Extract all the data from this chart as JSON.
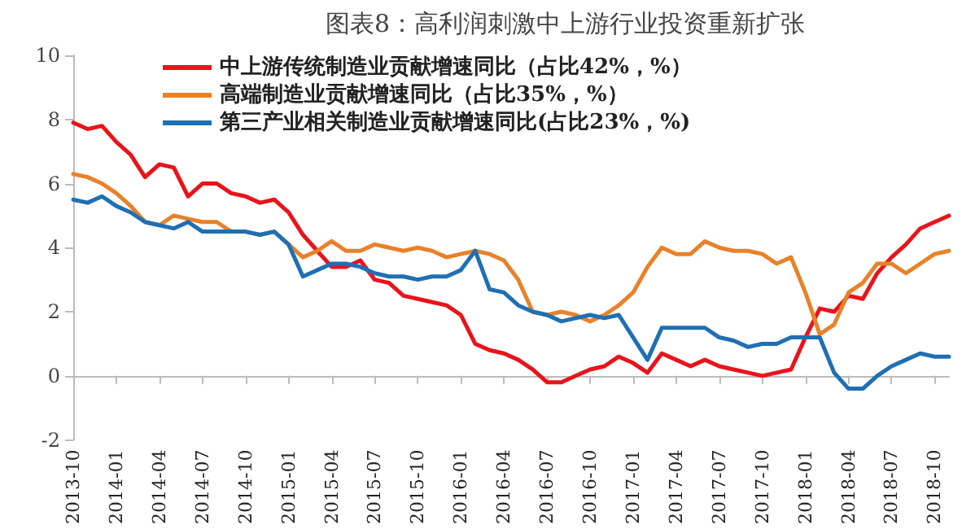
{
  "chart_data": {
    "type": "line",
    "title": "图表8：高利润刺激中上游行业投资重新扩张",
    "categories": [
      "2013-10",
      null,
      null,
      "2014-01",
      null,
      null,
      "2014-04",
      null,
      null,
      "2014-07",
      null,
      null,
      "2014-10",
      null,
      null,
      "2015-01",
      null,
      null,
      "2015-04",
      null,
      null,
      "2015-07",
      null,
      null,
      "2015-10",
      null,
      null,
      "2016-01",
      null,
      null,
      "2016-04",
      null,
      null,
      "2016-07",
      null,
      null,
      "2016-10",
      null,
      null,
      "2017-01",
      null,
      null,
      "2017-04",
      null,
      null,
      "2017-07",
      null,
      null,
      "2017-10",
      null,
      null,
      "2018-01",
      null,
      null,
      "2018-04",
      null,
      null,
      "2018-07",
      null,
      null,
      "2018-10",
      null
    ],
    "series": [
      {
        "name": "中上游传统制造业贡献增速同比（占比42%，%）",
        "color": "#e8141c",
        "values": [
          7.9,
          7.7,
          7.8,
          7.3,
          6.9,
          6.2,
          6.6,
          6.5,
          5.6,
          6.0,
          6.0,
          5.7,
          5.6,
          5.4,
          5.5,
          5.1,
          4.4,
          3.9,
          3.4,
          3.4,
          3.6,
          3.0,
          2.9,
          2.5,
          2.4,
          2.3,
          2.2,
          1.9,
          1.0,
          0.8,
          0.7,
          0.5,
          0.2,
          -0.2,
          -0.2,
          0.0,
          0.2,
          0.3,
          0.6,
          0.4,
          0.1,
          0.7,
          0.5,
          0.3,
          0.5,
          0.3,
          0.2,
          0.1,
          0.0,
          0.1,
          0.2,
          1.2,
          2.1,
          2.0,
          2.5,
          2.4,
          3.2,
          3.7,
          4.1,
          4.6,
          4.8,
          5.0
        ]
      },
      {
        "name": "高端制造业贡献增速同比（占比35%，%）",
        "color": "#e8822a",
        "values": [
          6.3,
          6.2,
          6.0,
          5.7,
          5.3,
          4.8,
          4.7,
          5.0,
          4.9,
          4.8,
          4.8,
          4.5,
          4.5,
          4.4,
          4.5,
          4.1,
          3.7,
          3.9,
          4.2,
          3.9,
          3.9,
          4.1,
          4.0,
          3.9,
          4.0,
          3.9,
          3.7,
          3.8,
          3.9,
          3.8,
          3.6,
          3.0,
          2.0,
          1.9,
          2.0,
          1.9,
          1.7,
          1.9,
          2.2,
          2.6,
          3.4,
          4.0,
          3.8,
          3.8,
          4.2,
          4.0,
          3.9,
          3.9,
          3.8,
          3.5,
          3.7,
          2.6,
          1.3,
          1.6,
          2.6,
          2.9,
          3.5,
          3.5,
          3.2,
          3.5,
          3.8,
          3.9
        ]
      },
      {
        "name": "第三产业相关制造业贡献增速同比(占比23%，%)",
        "color": "#1f6fb4",
        "values": [
          5.5,
          5.4,
          5.6,
          5.3,
          5.1,
          4.8,
          4.7,
          4.6,
          4.8,
          4.5,
          4.5,
          4.5,
          4.5,
          4.4,
          4.5,
          4.1,
          3.1,
          3.3,
          3.5,
          3.5,
          3.4,
          3.2,
          3.1,
          3.1,
          3.0,
          3.1,
          3.1,
          3.3,
          3.9,
          2.7,
          2.6,
          2.2,
          2.0,
          1.9,
          1.7,
          1.8,
          1.9,
          1.8,
          1.9,
          1.2,
          0.5,
          1.5,
          1.5,
          1.5,
          1.5,
          1.2,
          1.1,
          0.9,
          1.0,
          1.0,
          1.2,
          1.2,
          1.2,
          0.1,
          -0.4,
          -0.4,
          0.0,
          0.3,
          0.5,
          0.7,
          0.6,
          0.6
        ]
      }
    ],
    "ylim": [
      -2,
      10
    ],
    "yticks": [
      -2,
      0,
      2,
      4,
      6,
      8,
      10
    ],
    "legend": "top left",
    "marker": "none",
    "line_style": "solid"
  }
}
